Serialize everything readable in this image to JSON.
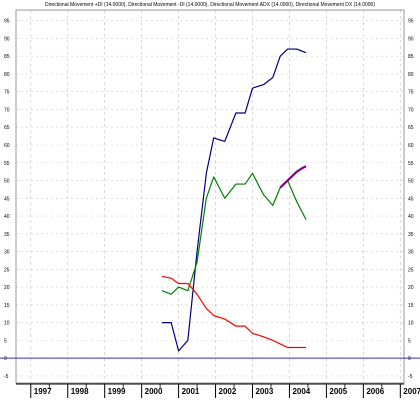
{
  "chart_data": {
    "type": "line",
    "title": "Directional Movement +DI (14.0000), Directional Movement -DI (14.0000), Directional Movement ADX (14.0000), Directional Movement DX (14.0000)",
    "x_labels": [
      "1997",
      "1998",
      "1999",
      "2000",
      "2001",
      "2002",
      "2003",
      "2004",
      "2005",
      "2006",
      "2007"
    ],
    "x_range": [
      1996.6,
      2007.1
    ],
    "ylim": [
      -7,
      98
    ],
    "y_ticks": [
      -5,
      0,
      5,
      10,
      15,
      20,
      25,
      30,
      35,
      40,
      45,
      50,
      55,
      60,
      65,
      70,
      75,
      80,
      85,
      90,
      95
    ],
    "grid": true,
    "reference_line": 0,
    "series": [
      {
        "color": "#000080",
        "x": [
          2000.55,
          2000.8,
          2001.0,
          2001.25,
          2001.5,
          2001.75,
          2001.95,
          2002.25,
          2002.55,
          2002.8,
          2003.0,
          2003.3,
          2003.55,
          2003.75,
          2003.95,
          2004.2,
          2004.45
        ],
        "y": [
          10,
          10,
          2,
          5,
          30,
          52,
          62,
          61,
          69,
          69,
          76,
          77,
          79,
          85,
          87,
          87,
          86
        ]
      },
      {
        "color": "#ff0000",
        "x": [
          2000.55,
          2000.8,
          2001.0,
          2001.25,
          2001.5,
          2001.75,
          2001.95,
          2002.25,
          2002.55,
          2002.8,
          2003.0,
          2003.3,
          2003.55,
          2003.75,
          2003.95,
          2004.2,
          2004.45
        ],
        "y": [
          23,
          22.5,
          21,
          21,
          18,
          14,
          12,
          11,
          9,
          9,
          7,
          6,
          5,
          4,
          3,
          3,
          3
        ]
      },
      {
        "color": "#008000",
        "x": [
          2000.55,
          2000.8,
          2001.0,
          2001.25,
          2001.5,
          2001.75,
          2001.95,
          2002.25,
          2002.55,
          2002.8,
          2003.0,
          2003.3,
          2003.55,
          2003.75,
          2003.95,
          2004.2,
          2004.45
        ],
        "y": [
          19,
          18,
          20,
          19,
          27,
          45,
          51,
          45,
          49,
          49,
          52,
          46,
          43,
          48,
          50,
          44,
          39
        ]
      },
      {
        "color": "#800080",
        "x": [
          2003.75,
          2003.85,
          2003.95,
          2004.1,
          2004.2,
          2004.35,
          2004.45
        ],
        "y": [
          48,
          49,
          50,
          51.5,
          52.5,
          53.5,
          54
        ]
      }
    ]
  }
}
